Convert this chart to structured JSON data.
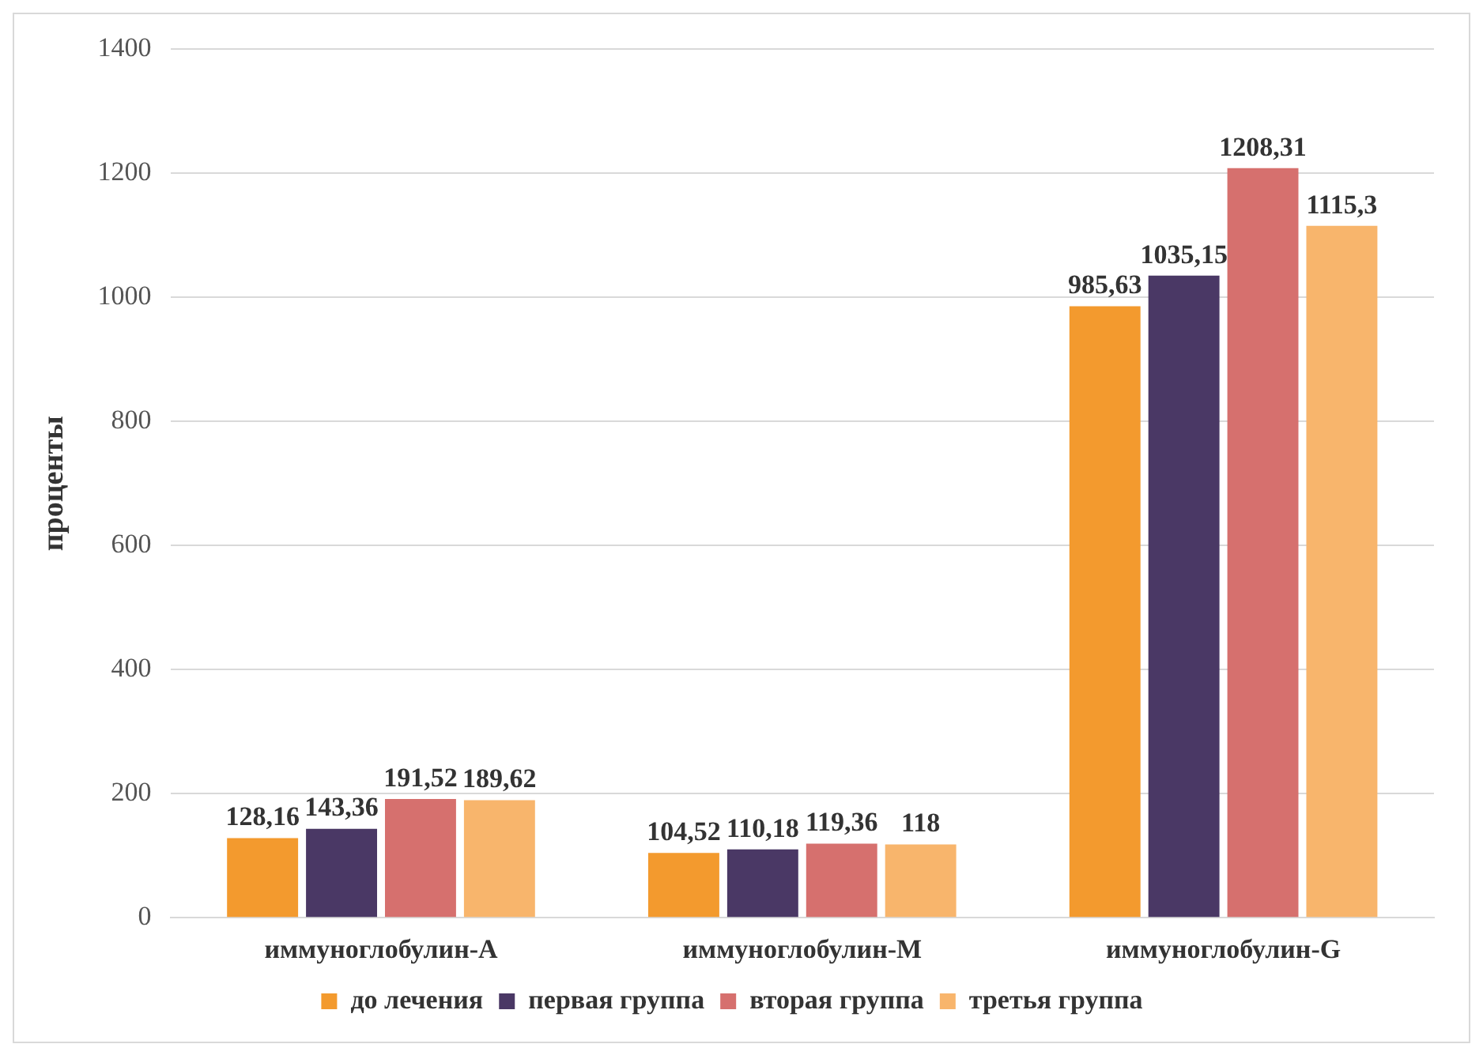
{
  "chart_data": {
    "type": "bar",
    "ylabel": "проценты",
    "categories": [
      "иммуноглобулин-А",
      "иммуноглобулин-М",
      "иммуноглобулин-G"
    ],
    "series": [
      {
        "name": "до лечения",
        "color": "#f39a2e",
        "values": [
          128.16,
          104.52,
          985.63
        ],
        "value_labels": [
          "128,16",
          "104,52",
          "985,63"
        ]
      },
      {
        "name": "первая группа",
        "color": "#4a3865",
        "values": [
          143.36,
          110.18,
          1035.15
        ],
        "value_labels": [
          "143,36",
          "110,18",
          "1035,15"
        ]
      },
      {
        "name": "вторая группа",
        "color": "#d6706e",
        "values": [
          191.52,
          119.36,
          1208.31
        ],
        "value_labels": [
          "191,52",
          "119,36",
          "1208,31"
        ]
      },
      {
        "name": "третья группа",
        "color": "#f8b56c",
        "values": [
          189.62,
          118,
          1115.3
        ],
        "value_labels": [
          "189,62",
          "118",
          "1115,3"
        ]
      }
    ],
    "ylim": [
      0,
      1400
    ],
    "yticks": [
      0,
      200,
      400,
      600,
      800,
      1000,
      1200,
      1400
    ],
    "grid": "y",
    "legend": "bottom"
  }
}
